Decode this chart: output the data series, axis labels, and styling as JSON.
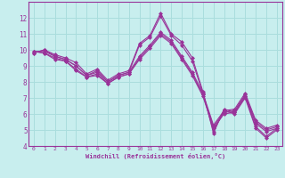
{
  "xlabel": "Windchill (Refroidissement éolien,°C)",
  "background_color": "#c8eeee",
  "line_color": "#993399",
  "grid_color": "#aadddd",
  "spine_color": "#993399",
  "xlim": [
    -0.5,
    23.5
  ],
  "ylim": [
    4,
    13
  ],
  "xticks": [
    0,
    1,
    2,
    3,
    4,
    5,
    6,
    7,
    8,
    9,
    10,
    11,
    12,
    13,
    14,
    15,
    16,
    17,
    18,
    19,
    20,
    21,
    22,
    23
  ],
  "yticks": [
    4,
    5,
    6,
    7,
    8,
    9,
    10,
    11,
    12
  ],
  "lines": [
    {
      "x": [
        0,
        1,
        2,
        3,
        4,
        5,
        6,
        7,
        8,
        9,
        10,
        11,
        12,
        13,
        14,
        15,
        16,
        17,
        18,
        19,
        20,
        21,
        22,
        23
      ],
      "y": [
        9.8,
        10.0,
        9.7,
        9.5,
        9.2,
        8.5,
        8.8,
        8.1,
        8.5,
        8.7,
        10.4,
        10.9,
        12.3,
        11.0,
        10.5,
        9.5,
        7.4,
        4.8,
        6.3,
        6.1,
        7.1,
        5.2,
        4.6,
        5.1
      ]
    },
    {
      "x": [
        0,
        1,
        2,
        3,
        4,
        5,
        6,
        7,
        8,
        9,
        10,
        11,
        12,
        13,
        14,
        15,
        16,
        17,
        18,
        19,
        20,
        21,
        22,
        23
      ],
      "y": [
        9.8,
        10.0,
        9.6,
        9.4,
        9.0,
        8.4,
        8.7,
        8.0,
        8.4,
        8.6,
        10.3,
        10.8,
        12.1,
        10.9,
        10.3,
        9.3,
        7.3,
        4.9,
        6.2,
        6.0,
        7.0,
        5.1,
        4.5,
        5.0
      ]
    },
    {
      "x": [
        0,
        1,
        2,
        3,
        4,
        5,
        6,
        7,
        8,
        9,
        10,
        11,
        12,
        13,
        14,
        15,
        16,
        17,
        18,
        19,
        20,
        21,
        22,
        23
      ],
      "y": [
        9.9,
        9.8,
        9.5,
        9.3,
        8.8,
        8.3,
        8.5,
        7.9,
        8.3,
        8.5,
        9.5,
        10.2,
        11.0,
        10.5,
        9.5,
        8.5,
        7.2,
        5.2,
        6.1,
        6.2,
        7.2,
        5.5,
        5.0,
        5.2
      ]
    },
    {
      "x": [
        0,
        1,
        2,
        3,
        4,
        5,
        6,
        7,
        8,
        9,
        10,
        11,
        12,
        13,
        14,
        15,
        16,
        17,
        18,
        19,
        20,
        21,
        22,
        23
      ],
      "y": [
        9.9,
        9.8,
        9.4,
        9.3,
        8.7,
        8.3,
        8.4,
        7.9,
        8.3,
        8.5,
        9.4,
        10.1,
        10.9,
        10.4,
        9.4,
        8.4,
        7.1,
        5.1,
        6.0,
        6.1,
        7.1,
        5.4,
        4.9,
        5.1
      ]
    },
    {
      "x": [
        0,
        1,
        2,
        3,
        4,
        5,
        6,
        7,
        8,
        9,
        10,
        11,
        12,
        13,
        14,
        15,
        16,
        17,
        18,
        19,
        20,
        21,
        22,
        23
      ],
      "y": [
        9.9,
        9.9,
        9.6,
        9.4,
        9.0,
        8.4,
        8.6,
        8.0,
        8.4,
        8.6,
        9.6,
        10.3,
        11.1,
        10.6,
        9.6,
        8.6,
        7.3,
        5.3,
        6.2,
        6.3,
        7.3,
        5.6,
        5.1,
        5.3
      ]
    }
  ]
}
